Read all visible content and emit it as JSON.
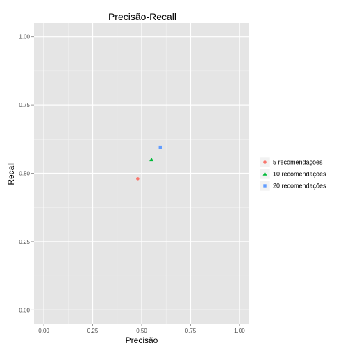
{
  "chart_data": {
    "type": "scatter",
    "title": "Precisão-Recall",
    "xlabel": "Precisão",
    "ylabel": "Recall",
    "xlim": [
      -0.05,
      1.05
    ],
    "ylim": [
      -0.05,
      1.05
    ],
    "x_ticks": [
      0.0,
      0.25,
      0.5,
      0.75,
      1.0
    ],
    "x_tick_labels": [
      "0.00",
      "0.25",
      "0.50",
      "0.75",
      "1.00"
    ],
    "y_ticks": [
      0.0,
      0.25,
      0.5,
      0.75,
      1.0
    ],
    "y_tick_labels": [
      "0.00",
      "0.25",
      "0.50",
      "0.75",
      "1.00"
    ],
    "grid": true,
    "legend_position": "right",
    "series": [
      {
        "name": "5 recomendações",
        "shape": "circle",
        "color": "#F8766D",
        "points": [
          {
            "x": 0.48,
            "y": 0.48
          }
        ]
      },
      {
        "name": "10 recomendações",
        "shape": "triangle",
        "color": "#00BA38",
        "points": [
          {
            "x": 0.55,
            "y": 0.55
          }
        ]
      },
      {
        "name": "20 recomendações",
        "shape": "square",
        "color": "#619CFF",
        "points": [
          {
            "x": 0.595,
            "y": 0.595
          }
        ]
      }
    ]
  }
}
